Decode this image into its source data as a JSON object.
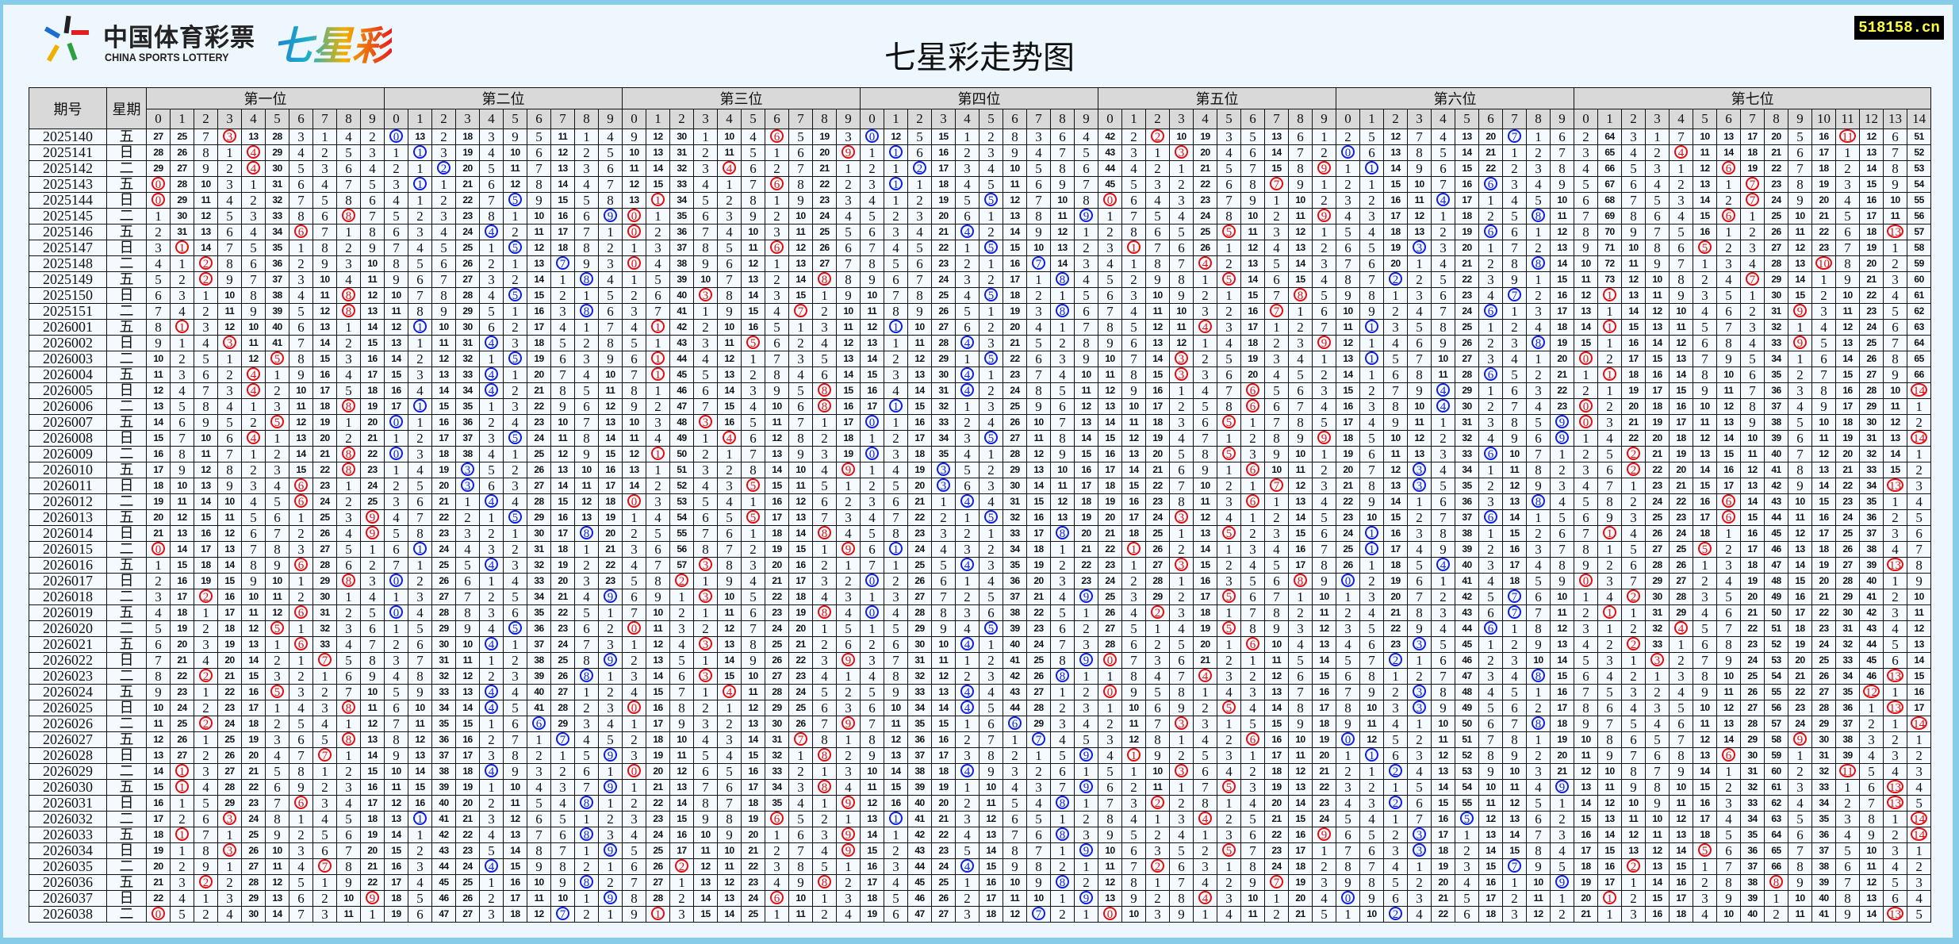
{
  "header": {
    "logo_cn": "中国体育彩票",
    "logo_en": "CHINA SPORTS LOTTERY",
    "logo_brand": "七星彩",
    "title": "七星彩走势图",
    "site": "518158.cn"
  },
  "colors": {
    "red": "#e01010",
    "blue": "#1020e0",
    "header_bg": "#d9d9d9",
    "page_bg": "#eef7fe",
    "border": "#87cdea"
  },
  "table": {
    "col_issue": "期号",
    "col_weekday": "星期",
    "positions": [
      {
        "label": "第一位",
        "digits": [
          "0",
          "1",
          "2",
          "3",
          "4",
          "5",
          "6",
          "7",
          "8",
          "9"
        ],
        "ball_color": "red"
      },
      {
        "label": "第二位",
        "digits": [
          "0",
          "1",
          "2",
          "3",
          "4",
          "5",
          "6",
          "7",
          "8",
          "9"
        ],
        "ball_color": "blue"
      },
      {
        "label": "第三位",
        "digits": [
          "0",
          "1",
          "2",
          "3",
          "4",
          "5",
          "6",
          "7",
          "8",
          "9"
        ],
        "ball_color": "red"
      },
      {
        "label": "第四位",
        "digits": [
          "0",
          "1",
          "2",
          "3",
          "4",
          "5",
          "6",
          "7",
          "8",
          "9"
        ],
        "ball_color": "blue"
      },
      {
        "label": "第五位",
        "digits": [
          "0",
          "1",
          "2",
          "3",
          "4",
          "5",
          "6",
          "7",
          "8",
          "9"
        ],
        "ball_color": "red"
      },
      {
        "label": "第六位",
        "digits": [
          "0",
          "1",
          "2",
          "3",
          "4",
          "5",
          "6",
          "7",
          "8",
          "9"
        ],
        "ball_color": "blue"
      },
      {
        "label": "第七位",
        "digits": [
          "0",
          "1",
          "2",
          "3",
          "4",
          "5",
          "6",
          "7",
          "8",
          "9",
          "10",
          "11",
          "12",
          "13",
          "14"
        ],
        "ball_color": "red"
      }
    ],
    "first_row_omission": [
      [
        27,
        25,
        7,
        0,
        13,
        28,
        3,
        1,
        4,
        2
      ],
      [
        0,
        13,
        2,
        18,
        3,
        9,
        5,
        11,
        1,
        4
      ],
      [
        9,
        12,
        30,
        1,
        10,
        4,
        0,
        5,
        19,
        3
      ],
      [
        0,
        12,
        5,
        15,
        1,
        2,
        8,
        3,
        6,
        4
      ],
      [
        42,
        2,
        0,
        10,
        19,
        3,
        5,
        13,
        6,
        1
      ],
      [
        2,
        5,
        12,
        7,
        4,
        13,
        20,
        0,
        1,
        6
      ],
      [
        2,
        64,
        3,
        1,
        7,
        10,
        13,
        17,
        20,
        5,
        16,
        0,
        12,
        6,
        51
      ]
    ],
    "rows": [
      {
        "issue": "2025140",
        "weekday": "五",
        "draw": [
          3,
          0,
          6,
          0,
          2,
          7,
          11
        ]
      },
      {
        "issue": "2025141",
        "weekday": "日",
        "draw": [
          4,
          1,
          9,
          1,
          3,
          0,
          4
        ]
      },
      {
        "issue": "2025142",
        "weekday": "二",
        "draw": [
          4,
          2,
          4,
          2,
          9,
          1,
          6
        ]
      },
      {
        "issue": "2025143",
        "weekday": "五",
        "draw": [
          0,
          1,
          6,
          1,
          7,
          6,
          7
        ]
      },
      {
        "issue": "2025144",
        "weekday": "日",
        "draw": [
          0,
          5,
          1,
          5,
          0,
          4,
          7
        ]
      },
      {
        "issue": "2025145",
        "weekday": "二",
        "draw": [
          8,
          9,
          0,
          9,
          9,
          8,
          6
        ]
      },
      {
        "issue": "2025146",
        "weekday": "五",
        "draw": [
          6,
          4,
          0,
          4,
          5,
          6,
          13
        ]
      },
      {
        "issue": "2025147",
        "weekday": "日",
        "draw": [
          1,
          5,
          6,
          5,
          1,
          3,
          5
        ]
      },
      {
        "issue": "2025148",
        "weekday": "二",
        "draw": [
          2,
          7,
          0,
          7,
          4,
          8,
          10
        ]
      },
      {
        "issue": "2025149",
        "weekday": "五",
        "draw": [
          2,
          8,
          8,
          8,
          5,
          2,
          7
        ]
      },
      {
        "issue": "2025150",
        "weekday": "日",
        "draw": [
          8,
          5,
          3,
          5,
          8,
          7,
          1
        ]
      },
      {
        "issue": "2025151",
        "weekday": "二",
        "draw": [
          8,
          8,
          7,
          8,
          7,
          6,
          9
        ]
      },
      {
        "issue": "2026001",
        "weekday": "五",
        "draw": [
          1,
          1,
          1,
          1,
          4,
          1,
          1
        ]
      },
      {
        "issue": "2026002",
        "weekday": "日",
        "draw": [
          3,
          4,
          5,
          4,
          9,
          8,
          9
        ]
      },
      {
        "issue": "2026003",
        "weekday": "二",
        "draw": [
          5,
          5,
          1,
          5,
          3,
          1,
          0
        ]
      },
      {
        "issue": "2026004",
        "weekday": "五",
        "draw": [
          4,
          4,
          1,
          4,
          3,
          6,
          1
        ]
      },
      {
        "issue": "2026005",
        "weekday": "日",
        "draw": [
          4,
          4,
          8,
          4,
          6,
          4,
          14
        ]
      },
      {
        "issue": "2026006",
        "weekday": "二",
        "draw": [
          8,
          1,
          8,
          1,
          6,
          4,
          0
        ]
      },
      {
        "issue": "2026007",
        "weekday": "五",
        "draw": [
          5,
          0,
          3,
          0,
          5,
          9,
          0
        ]
      },
      {
        "issue": "2026008",
        "weekday": "日",
        "draw": [
          4,
          5,
          4,
          5,
          9,
          9,
          14
        ]
      },
      {
        "issue": "2026009",
        "weekday": "二",
        "draw": [
          8,
          0,
          1,
          0,
          5,
          6,
          2
        ]
      },
      {
        "issue": "2026010",
        "weekday": "五",
        "draw": [
          8,
          3,
          9,
          3,
          6,
          3,
          2
        ]
      },
      {
        "issue": "2026011",
        "weekday": "日",
        "draw": [
          6,
          3,
          5,
          3,
          7,
          3,
          13
        ]
      },
      {
        "issue": "2026012",
        "weekday": "二",
        "draw": [
          6,
          4,
          0,
          4,
          6,
          8,
          6
        ]
      },
      {
        "issue": "2026013",
        "weekday": "五",
        "draw": [
          9,
          5,
          5,
          5,
          3,
          6,
          6
        ]
      },
      {
        "issue": "2026014",
        "weekday": "日",
        "draw": [
          9,
          8,
          8,
          8,
          5,
          1,
          1
        ]
      },
      {
        "issue": "2026015",
        "weekday": "二",
        "draw": [
          0,
          1,
          9,
          1,
          1,
          1,
          5
        ]
      },
      {
        "issue": "2026016",
        "weekday": "五",
        "draw": [
          6,
          4,
          3,
          4,
          3,
          4,
          13
        ]
      },
      {
        "issue": "2026017",
        "weekday": "日",
        "draw": [
          8,
          0,
          2,
          0,
          8,
          0,
          0
        ]
      },
      {
        "issue": "2026018",
        "weekday": "二",
        "draw": [
          2,
          9,
          3,
          9,
          5,
          7,
          2
        ]
      },
      {
        "issue": "2026019",
        "weekday": "五",
        "draw": [
          6,
          0,
          8,
          0,
          2,
          7,
          1
        ]
      },
      {
        "issue": "2026020",
        "weekday": "二",
        "draw": [
          5,
          5,
          0,
          5,
          5,
          6,
          4
        ]
      },
      {
        "issue": "2026021",
        "weekday": "五",
        "draw": [
          6,
          4,
          3,
          4,
          6,
          3,
          2
        ]
      },
      {
        "issue": "2026022",
        "weekday": "日",
        "draw": [
          7,
          9,
          9,
          9,
          0,
          2,
          3
        ]
      },
      {
        "issue": "2026023",
        "weekday": "二",
        "draw": [
          2,
          8,
          3,
          8,
          4,
          8,
          13
        ]
      },
      {
        "issue": "2026024",
        "weekday": "五",
        "draw": [
          5,
          4,
          4,
          4,
          0,
          3,
          12
        ]
      },
      {
        "issue": "2026025",
        "weekday": "日",
        "draw": [
          8,
          4,
          0,
          4,
          5,
          3,
          13
        ]
      },
      {
        "issue": "2026026",
        "weekday": "二",
        "draw": [
          2,
          6,
          9,
          6,
          3,
          8,
          14
        ]
      },
      {
        "issue": "2026027",
        "weekday": "五",
        "draw": [
          8,
          7,
          7,
          7,
          6,
          0,
          9
        ]
      },
      {
        "issue": "2026028",
        "weekday": "日",
        "draw": [
          7,
          9,
          8,
          9,
          1,
          1,
          6
        ]
      },
      {
        "issue": "2026029",
        "weekday": "二",
        "draw": [
          1,
          4,
          0,
          4,
          3,
          2,
          11
        ]
      },
      {
        "issue": "2026030",
        "weekday": "五",
        "draw": [
          1,
          9,
          8,
          9,
          5,
          9,
          13
        ]
      },
      {
        "issue": "2026031",
        "weekday": "日",
        "draw": [
          6,
          8,
          9,
          8,
          2,
          2,
          13
        ]
      },
      {
        "issue": "2026032",
        "weekday": "二",
        "draw": [
          3,
          1,
          6,
          1,
          4,
          5,
          14
        ]
      },
      {
        "issue": "2026033",
        "weekday": "五",
        "draw": [
          1,
          8,
          9,
          8,
          9,
          3,
          14
        ]
      },
      {
        "issue": "2026034",
        "weekday": "日",
        "draw": [
          3,
          9,
          9,
          9,
          5,
          3,
          5
        ]
      },
      {
        "issue": "2026035",
        "weekday": "二",
        "draw": [
          7,
          4,
          2,
          4,
          2,
          7,
          2
        ]
      },
      {
        "issue": "2026036",
        "weekday": "五",
        "draw": [
          2,
          8,
          8,
          8,
          7,
          9,
          8
        ]
      },
      {
        "issue": "2026037",
        "weekday": "日",
        "draw": [
          9,
          9,
          6,
          9,
          4,
          0,
          1
        ]
      },
      {
        "issue": "2026038",
        "weekday": "二",
        "draw": [
          0,
          7,
          1,
          7,
          0,
          2,
          13
        ]
      }
    ]
  }
}
